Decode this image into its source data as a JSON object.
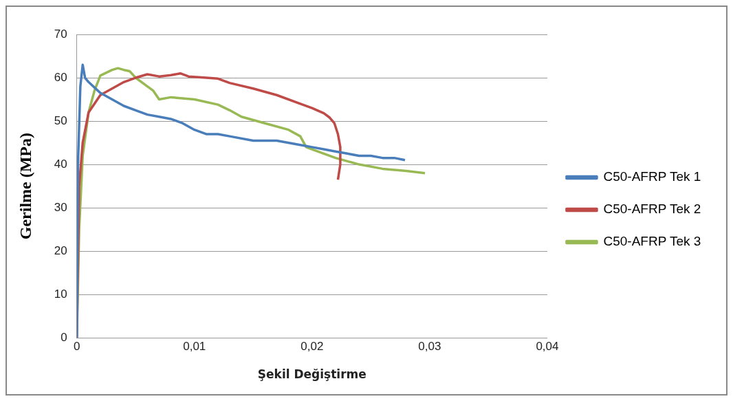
{
  "chart_data": {
    "type": "line",
    "xlabel": "Şekil Değiştirme",
    "ylabel": "Gerilme (MPa)",
    "xlim": [
      0,
      0.04
    ],
    "xticks": [
      {
        "value": 0,
        "label": "0"
      },
      {
        "value": 0.01,
        "label": "0,01"
      },
      {
        "value": 0.02,
        "label": "0,02"
      },
      {
        "value": 0.03,
        "label": "0,03"
      },
      {
        "value": 0.04,
        "label": "0,04"
      }
    ],
    "ylim": [
      0,
      70
    ],
    "yticks": [
      0,
      10,
      20,
      30,
      40,
      50,
      60,
      70
    ],
    "grid": "y",
    "legend": "right",
    "marker": "none",
    "line_style": "solid",
    "series": [
      {
        "name": "C50-AFRP Tek 1",
        "color": "#4a7ebb",
        "x": [
          0,
          0.0001,
          0.0003,
          0.0005,
          0.0007,
          0.001,
          0.002,
          0.003,
          0.004,
          0.005,
          0.006,
          0.007,
          0.008,
          0.009,
          0.01,
          0.011,
          0.012,
          0.013,
          0.015,
          0.017,
          0.019,
          0.02,
          0.021,
          0.022,
          0.023,
          0.024,
          0.025,
          0.026,
          0.027,
          0.0279
        ],
        "values": [
          0,
          40,
          58,
          63,
          60,
          59,
          56.5,
          55,
          53.5,
          52.5,
          51.5,
          51,
          50.5,
          49.5,
          48,
          47,
          47,
          46.5,
          45.5,
          45.5,
          44.5,
          44,
          43.5,
          43,
          42.5,
          42,
          42,
          41.5,
          41.5,
          41
        ]
      },
      {
        "name": "C50-AFRP Tek 2",
        "color": "#be4b48",
        "x": [
          0,
          0.0002,
          0.0005,
          0.001,
          0.002,
          0.003,
          0.004,
          0.005,
          0.006,
          0.007,
          0.008,
          0.0088,
          0.0095,
          0.011,
          0.012,
          0.013,
          0.015,
          0.017,
          0.019,
          0.02,
          0.021,
          0.0215,
          0.0219,
          0.0222,
          0.0224,
          0.0224,
          0.0222
        ],
        "values": [
          0,
          35,
          45,
          52,
          56,
          57.5,
          59,
          60,
          60.8,
          60.3,
          60.6,
          61,
          60.3,
          60,
          59.8,
          58.8,
          57.5,
          56,
          54,
          53,
          51.8,
          50.8,
          49.5,
          47,
          44,
          40,
          36.5
        ]
      },
      {
        "name": "C50-AFRP Tek 3",
        "color": "#98b954",
        "x": [
          0,
          0.0002,
          0.0005,
          0.001,
          0.0015,
          0.002,
          0.003,
          0.0035,
          0.004,
          0.0045,
          0.005,
          0.006,
          0.0065,
          0.007,
          0.008,
          0.01,
          0.012,
          0.013,
          0.014,
          0.016,
          0.018,
          0.019,
          0.0195,
          0.02,
          0.022,
          0.024,
          0.026,
          0.028,
          0.0296
        ],
        "values": [
          0,
          25,
          42,
          52,
          57,
          60.5,
          61.8,
          62.2,
          61.8,
          61.5,
          60,
          58,
          57,
          55,
          55.5,
          55,
          53.8,
          52.5,
          51,
          49.5,
          48,
          46.5,
          44,
          43.5,
          41.5,
          40,
          39,
          38.5,
          38
        ]
      }
    ]
  }
}
